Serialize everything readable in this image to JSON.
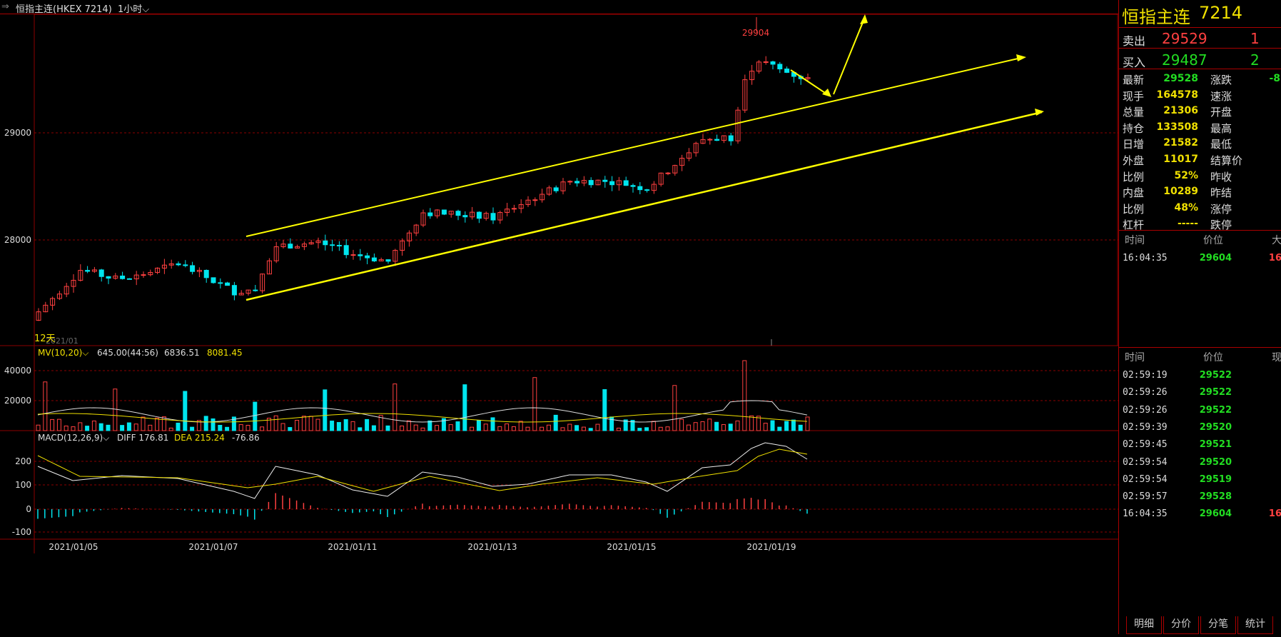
{
  "window": {
    "title": "恒指主连(HKEX 7214)",
    "period": "1小时"
  },
  "main_chart": {
    "marker_high_label": "29904",
    "date_overlay": "2021/01",
    "left_label": "12天",
    "y_ticks": [
      "29000",
      "28000"
    ],
    "x_ticks": [
      "2021/01/05",
      "2021/01/07",
      "2021/01/11",
      "2021/01/13",
      "2021/01/15",
      "2021/01/19"
    ]
  },
  "mv_panel": {
    "title": "MV(10,20)",
    "v1": "645.00(44:56)",
    "v2": "6836.51",
    "v3": "8081.45",
    "y_ticks": [
      "40000",
      "20000"
    ]
  },
  "macd_panel": {
    "title": "MACD(12,26,9)",
    "diff_label": "DIFF 176.81",
    "dea_label": "DEA 215.24",
    "macd_value": "-76.86",
    "y_ticks": [
      "200",
      "100",
      "0",
      "-100"
    ]
  },
  "quote": {
    "name": "恒指主连",
    "code": "7214",
    "sell_label": "卖出",
    "sell_price": "29529",
    "sell_vol": "1",
    "buy_label": "买入",
    "buy_price": "29487",
    "buy_vol": "2",
    "stats": [
      {
        "label": "最新",
        "value": "29528",
        "color": "#22dd22",
        "label2": "涨跌",
        "value2": "-8"
      },
      {
        "label": "现手",
        "value": "164578",
        "color": "#f0e000",
        "label2": "速涨",
        "value2": ""
      },
      {
        "label": "总量",
        "value": "21306",
        "color": "#f0e000",
        "label2": "开盘",
        "value2": ""
      },
      {
        "label": "持仓",
        "value": "133508",
        "color": "#f0e000",
        "label2": "最高",
        "value2": ""
      },
      {
        "label": "日增",
        "value": "21582",
        "color": "#f0e000",
        "label2": "最低",
        "value2": ""
      },
      {
        "label": "外盘",
        "value": "11017",
        "color": "#f0e000",
        "label2": "结算价",
        "value2": ""
      },
      {
        "label": "比例",
        "value": "52%",
        "color": "#f0e000",
        "label2": "昨收",
        "value2": ""
      },
      {
        "label": "内盘",
        "value": "10289",
        "color": "#f0e000",
        "label2": "昨结",
        "value2": ""
      },
      {
        "label": "比例",
        "value": "48%",
        "color": "#f0e000",
        "label2": "涨停",
        "value2": ""
      },
      {
        "label": "杠杆",
        "value": "-----",
        "color": "#f0e000",
        "label2": "跌停",
        "value2": ""
      }
    ]
  },
  "ticks_top": {
    "headers": [
      "时间",
      "价位",
      "大"
    ],
    "rows": [
      {
        "time": "16:04:35",
        "price": "29604",
        "vol": "16"
      }
    ]
  },
  "ticks_bottom": {
    "headers": [
      "时间",
      "价位",
      "现"
    ],
    "rows": [
      {
        "time": "02:59:19",
        "price": "29522",
        "vol": ""
      },
      {
        "time": "02:59:26",
        "price": "29522",
        "vol": ""
      },
      {
        "time": "02:59:26",
        "price": "29522",
        "vol": ""
      },
      {
        "time": "02:59:39",
        "price": "29520",
        "vol": ""
      },
      {
        "time": "02:59:45",
        "price": "29521",
        "vol": ""
      },
      {
        "time": "02:59:54",
        "price": "29520",
        "vol": ""
      },
      {
        "time": "02:59:54",
        "price": "29519",
        "vol": ""
      },
      {
        "time": "02:59:57",
        "price": "29528",
        "vol": ""
      },
      {
        "time": "16:04:35",
        "price": "29604",
        "vol": "16"
      }
    ]
  },
  "tabs": [
    "明细",
    "分价",
    "分笔",
    "统计"
  ],
  "colors": {
    "up": "#ff4040",
    "down": "#00e5ee",
    "trend": "#ffff00",
    "grid": "#8b0000"
  }
}
